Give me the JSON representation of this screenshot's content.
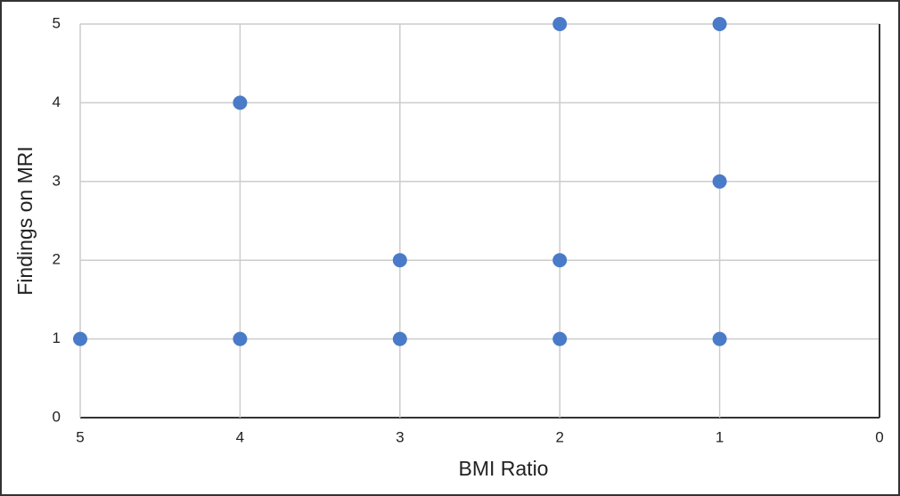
{
  "chart_data": {
    "type": "scatter",
    "x_label": "BMI Ratio",
    "y_label": "Findings on MRI",
    "series": [
      {
        "color": "#4a7bc8",
        "x": [
          5,
          4,
          4,
          3,
          3,
          2,
          2,
          2,
          1,
          1,
          1
        ],
        "values": [
          1,
          4,
          1,
          2,
          1,
          5,
          2,
          1,
          5,
          3,
          1
        ]
      }
    ],
    "xlim": [
      5,
      0
    ],
    "xticks": [
      5,
      4,
      3,
      2,
      1,
      0
    ],
    "ylim": [
      0,
      5
    ],
    "yticks": [
      0,
      1,
      2,
      3,
      4,
      5
    ],
    "grid": true
  }
}
